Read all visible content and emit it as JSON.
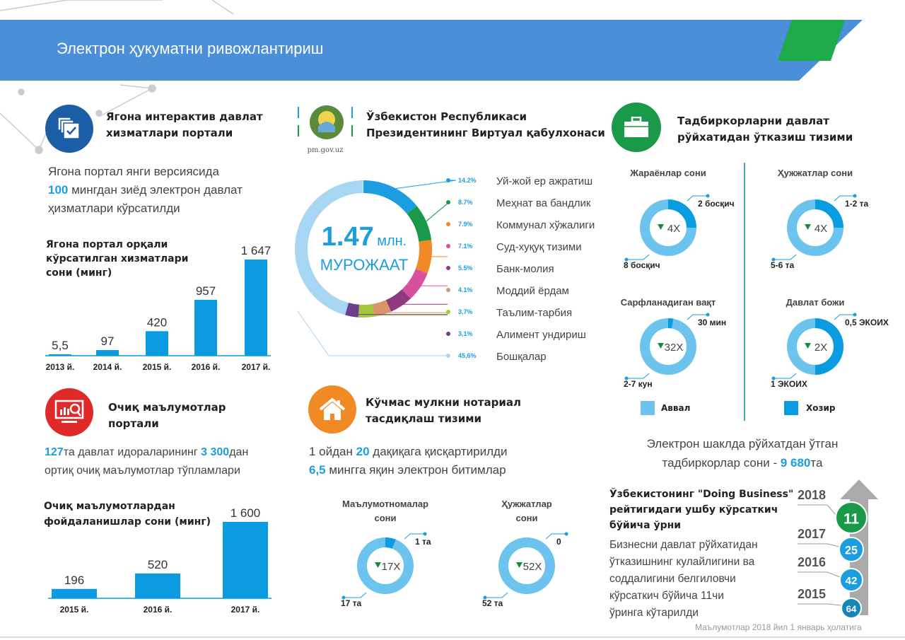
{
  "header": {
    "title": "Электрон ҳукуматни ривожлантириш",
    "band_color": "#4a8fd8",
    "accent_color": "#1fab4a"
  },
  "portal": {
    "title_line1": "Ягона интерактив давлат",
    "title_line2": "хизматлари портали",
    "icon": "documents-check-icon",
    "text_line1": "Ягона портал янги версиясида",
    "text_line2_highlight": "100",
    "text_line2_rest": " мингдан зиёд электрон давлат",
    "text_line3": "ҳизматлари кўрсатилди"
  },
  "open_data": {
    "title_line1": "Очиқ маълумотлар",
    "title_line2": "портали",
    "icon": "monitor-search-icon",
    "hl1": "127",
    "t1": "та давлат идораларининг ",
    "hl2": "3 300",
    "t2": "дан",
    "line2": "ортиқ очиқ маълумотлар тўпламлари"
  },
  "reception": {
    "title_line1": "Ўзбекистон Республикаси",
    "title_line2": "Президентининг Виртуал қабулхонаси",
    "logo_caption": "pm.gov.uz",
    "total_value": "1.47",
    "total_unit": "млн.",
    "total_label": "МУРОЖААТ"
  },
  "notary": {
    "title_line1": "Кўчмас мулкни нотариал",
    "title_line2": "тасдиқлаш тизими",
    "icon": "house-icon",
    "l1_a": "1 ойдан ",
    "l1_hl": "20",
    "l1_b": " дақиқага қисқартирилди",
    "l2_hl": "6,5",
    "l2_b": " мингга яқин электрон битимлар"
  },
  "business": {
    "title_line1": "Тадбиркорларни давлат",
    "title_line2": "рўйхатидан ўтказиш тизими",
    "icon": "briefcase-icon",
    "legend_before": "Аввал",
    "legend_after": "Хозир",
    "reg_l1": "Электрон шаклда рўйхатдан ўтган",
    "reg_l2": "тадбиркорлар сони - ",
    "reg_hl": "9 680",
    "reg_suffix": "та"
  },
  "doing_business": {
    "title_l1": "Ўзбекистонинг \"Doing Business\"",
    "title_l2": "рейтигидаги ушбу кўрсаткич",
    "title_l3": "бўйича ўрни",
    "desc": [
      "Бизнесни давлат рўйхатидан",
      "ўтказишнинг кулайлигини ва",
      "соддалигини белгиловчи",
      "кўрсаткич бўйича 11чи",
      "ўринга кўтарилди"
    ],
    "ranks": [
      {
        "year": "2018",
        "rank": "11",
        "color": "#1a9a48"
      },
      {
        "year": "2017",
        "rank": "25",
        "color": "#1a9ee0"
      },
      {
        "year": "2016",
        "rank": "42",
        "color": "#1a9ee0"
      },
      {
        "year": "2015",
        "rank": "64",
        "color": "#1686b8"
      }
    ]
  },
  "footer": {
    "note": "Маълумотлар 2018 йил 1 январь ҳолатига"
  },
  "chart_data": [
    {
      "type": "bar",
      "title": "Ягона портал орқали кўрсатилган хизматлари сони (минг)",
      "title_lines": [
        "Ягона портал орқали",
        "кўрсатилган хизматлари",
        "сони (минг)"
      ],
      "categories": [
        "2013 й.",
        "2014 й.",
        "2015 й.",
        "2016 й.",
        "2017 й."
      ],
      "values": [
        5.5,
        97,
        420,
        957,
        1647
      ],
      "value_labels": [
        "5,5",
        "97",
        "420",
        "957",
        "1 647"
      ],
      "color": "#0a9be0"
    },
    {
      "type": "bar",
      "title": "Очиқ маълумотлардан фойдаланишлар сони (минг)",
      "title_lines": [
        "Очиқ маълумотлардан",
        "фойдаланишлар сони (минг)"
      ],
      "categories": [
        "2015 й.",
        "2016 й.",
        "2017 й."
      ],
      "values": [
        196,
        520,
        1600
      ],
      "value_labels": [
        "196",
        "520",
        "1 600"
      ],
      "color": "#0a9be0"
    },
    {
      "type": "pie",
      "categories": [
        "Уй-жой  ер ажратиш",
        "Меҳнат ва бандлик",
        "Коммунал хўжалиги",
        "Суд-хуқуқ тизими",
        "Банк-молия",
        "Моддий ёрдам",
        "Таълим-тарбия",
        "Алимент ундириш",
        "Бошқалар"
      ],
      "values": [
        14.2,
        8.7,
        7.9,
        7.1,
        5.5,
        4.1,
        3.7,
        3.1,
        45.6
      ],
      "value_labels": [
        "14.2%",
        "8.7%",
        "7.9%",
        "7.1%",
        "5.5%",
        "4.1%",
        "3,7%",
        "3,1%",
        "45,6%"
      ],
      "colors": [
        "#1a9ee0",
        "#1a9a48",
        "#f08a24",
        "#d6509f",
        "#8e3a7e",
        "#d9956a",
        "#a5c73a",
        "#6b3f8c",
        "#a6d6f2"
      ]
    },
    {
      "type": "pie",
      "title": "Жараёнлар сони",
      "before_label": "8 босқич",
      "after_label": "2 босқич",
      "reduction": "4X",
      "after_share": 0.25
    },
    {
      "type": "pie",
      "title": "Ҳужжатлар сони",
      "before_label": "5-6 та",
      "after_label": "1-2 та",
      "reduction": "4X",
      "after_share": 0.25
    },
    {
      "type": "pie",
      "title": "Сарфланадиган вақт",
      "before_label": "2-7 кун",
      "after_label": "30 мин",
      "reduction": "32X",
      "after_share": 0.03
    },
    {
      "type": "pie",
      "title": "Давлат божи",
      "before_label": "1 ЭКОИХ",
      "after_label": "0,5 ЭКОИХ",
      "reduction": "2X",
      "after_share": 0.5
    },
    {
      "type": "pie",
      "title": "Маълумотномалар сони",
      "title_lines": [
        "Маълумотномалар",
        "сони"
      ],
      "before_label": "17 та",
      "after_label": "1 та",
      "reduction": "17X",
      "after_share": 0.06
    },
    {
      "type": "pie",
      "title": "Ҳужжатлар сони",
      "title_lines": [
        "Ҳужжатлар",
        "сони"
      ],
      "before_label": "52 та",
      "after_label": "0",
      "reduction": "52X",
      "after_share": 0
    }
  ],
  "colors": {
    "before": "#6cc3ee",
    "after": "#0a9be0",
    "down_arrow": "#1a8a3a"
  }
}
